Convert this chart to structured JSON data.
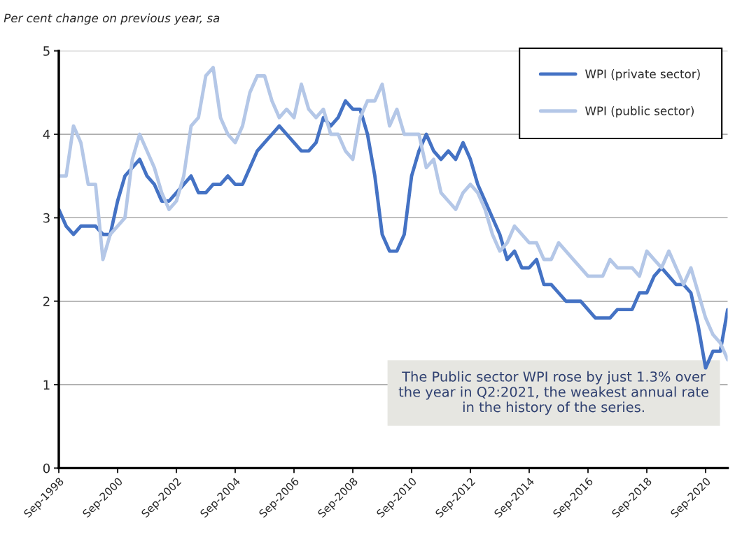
{
  "chart_data": {
    "type": "line",
    "ylabel": "Per cent change on previous year, sa",
    "categories": [
      "Sep-1998",
      null,
      null,
      null,
      null,
      null,
      null,
      null,
      "Sep-2000",
      null,
      null,
      null,
      null,
      null,
      null,
      null,
      "Sep-2002",
      null,
      null,
      null,
      null,
      null,
      null,
      null,
      "Sep-2004",
      null,
      null,
      null,
      null,
      null,
      null,
      null,
      "Sep-2006",
      null,
      null,
      null,
      null,
      null,
      null,
      null,
      "Sep-2008",
      null,
      null,
      null,
      null,
      null,
      null,
      null,
      "Sep-2010",
      null,
      null,
      null,
      null,
      null,
      null,
      null,
      "Sep-2012",
      null,
      null,
      null,
      null,
      null,
      null,
      null,
      "Sep-2014",
      null,
      null,
      null,
      null,
      null,
      null,
      null,
      "Sep-2016",
      null,
      null,
      null,
      null,
      null,
      null,
      null,
      "Sep-2018",
      null,
      null,
      null,
      null,
      null,
      null,
      null,
      "Sep-2020",
      null,
      null,
      null
    ],
    "series": [
      {
        "name": "WPI (private sector)",
        "color": "#4472c4",
        "values": [
          3.1,
          2.9,
          2.8,
          2.9,
          2.9,
          2.9,
          2.8,
          2.8,
          3.2,
          3.5,
          3.6,
          3.7,
          3.5,
          3.4,
          3.2,
          3.2,
          3.3,
          3.4,
          3.5,
          3.3,
          3.3,
          3.4,
          3.4,
          3.5,
          3.4,
          3.4,
          3.6,
          3.8,
          3.9,
          4.0,
          4.1,
          4.0,
          3.9,
          3.8,
          3.8,
          3.9,
          4.2,
          4.1,
          4.2,
          4.4,
          4.3,
          4.3,
          4.0,
          3.5,
          2.8,
          2.6,
          2.6,
          2.8,
          3.5,
          3.8,
          4.0,
          3.8,
          3.7,
          3.8,
          3.7,
          3.9,
          3.7,
          3.4,
          3.2,
          3.0,
          2.8,
          2.5,
          2.6,
          2.4,
          2.4,
          2.5,
          2.2,
          2.2,
          2.1,
          2.0,
          2.0,
          2.0,
          1.9,
          1.8,
          1.8,
          1.8,
          1.9,
          1.9,
          1.9,
          2.1,
          2.1,
          2.3,
          2.4,
          2.3,
          2.2,
          2.2,
          2.1,
          1.7,
          1.2,
          1.4,
          1.4,
          1.9
        ]
      },
      {
        "name": "WPI (public sector)",
        "color": "#b4c7e7",
        "values": [
          3.5,
          3.5,
          4.1,
          3.9,
          3.4,
          3.4,
          2.5,
          2.8,
          2.9,
          3.0,
          3.7,
          4.0,
          3.8,
          3.6,
          3.3,
          3.1,
          3.2,
          3.5,
          4.1,
          4.2,
          4.7,
          4.8,
          4.2,
          4.0,
          3.9,
          4.1,
          4.5,
          4.7,
          4.7,
          4.4,
          4.2,
          4.3,
          4.2,
          4.6,
          4.3,
          4.2,
          4.3,
          4.0,
          4.0,
          3.8,
          3.7,
          4.2,
          4.4,
          4.4,
          4.6,
          4.1,
          4.3,
          4.0,
          4.0,
          4.0,
          3.6,
          3.7,
          3.3,
          3.2,
          3.1,
          3.3,
          3.4,
          3.3,
          3.1,
          2.8,
          2.6,
          2.7,
          2.9,
          2.8,
          2.7,
          2.7,
          2.5,
          2.5,
          2.7,
          2.6,
          2.5,
          2.4,
          2.3,
          2.3,
          2.3,
          2.5,
          2.4,
          2.4,
          2.4,
          2.3,
          2.6,
          2.5,
          2.4,
          2.6,
          2.4,
          2.2,
          2.4,
          2.1,
          1.8,
          1.6,
          1.5,
          1.3
        ]
      }
    ],
    "ylim": [
      0,
      5
    ],
    "yticks": [
      0,
      1,
      2,
      3,
      4,
      5
    ],
    "grid": "y",
    "legend": "top right",
    "annotations": [
      "The Public sector WPI rose by just 1.3% over the year in Q2:2021, the weakest annual rate in the history of the series."
    ]
  }
}
